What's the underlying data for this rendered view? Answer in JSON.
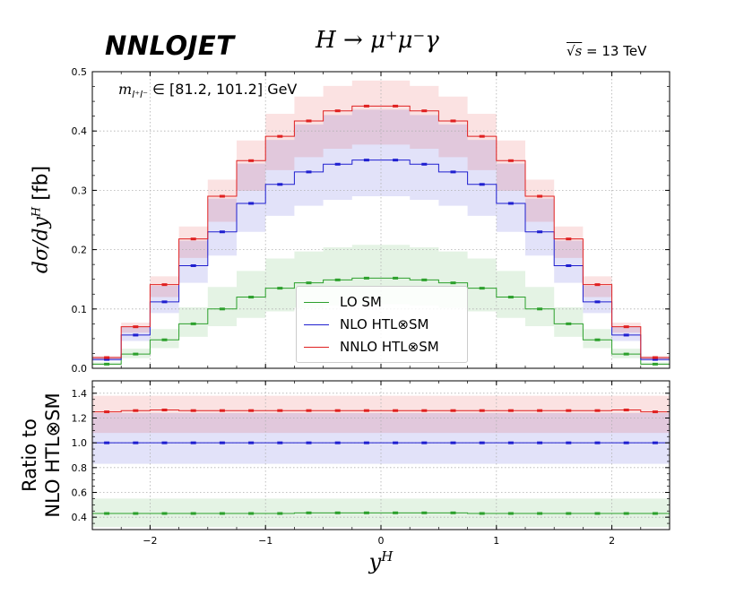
{
  "header": {
    "brand": "NNLOJET",
    "process": "H → μ⁺μ⁻γ",
    "energy_sqrt": "√s",
    "energy_value": " = 13 TeV",
    "mass_cut_var": "m",
    "mass_cut_sub": "l⁺l⁻",
    "mass_cut_range": " ∈ [81.2, 101.2] GeV"
  },
  "axes": {
    "top_ylabel_a": "dσ/dy",
    "top_ylabel_sup": "H",
    "top_ylabel_b": " [fb]",
    "bottom_ylabel_line1": "Ratio to",
    "bottom_ylabel_line2": "NLO HTL⊗SM",
    "xlabel": "y",
    "xlabel_sup": "H"
  },
  "legend": {
    "entries": [
      {
        "label": "LO SM",
        "color": "#2ca02c"
      },
      {
        "label": "NLO HTL⊗SM",
        "color": "#1f1fd0"
      },
      {
        "label": "NNLO HTL⊗SM",
        "color": "#e02020"
      }
    ]
  },
  "chart_data": [
    {
      "type": "line",
      "style": "step histogram with uncertainty bands",
      "x_bin_edges": [
        -2.5,
        -2.25,
        -2.0,
        -1.75,
        -1.5,
        -1.25,
        -1.0,
        -0.75,
        -0.5,
        -0.25,
        0.0,
        0.25,
        0.5,
        0.75,
        1.0,
        1.25,
        1.5,
        1.75,
        2.0,
        2.25,
        2.5
      ],
      "xlim": [
        -2.5,
        2.5
      ],
      "ylim": [
        0.0,
        0.5
      ],
      "x_ticks": [
        -2,
        -1,
        0,
        1,
        2
      ],
      "y_ticks": [
        0.0,
        0.1,
        0.2,
        0.3,
        0.4,
        0.5
      ],
      "grid": true,
      "legend_position": "bottom-center",
      "series": [
        {
          "name": "LO SM",
          "color": "#2ca02c",
          "values": [
            0.007,
            0.024,
            0.048,
            0.075,
            0.1,
            0.12,
            0.135,
            0.144,
            0.149,
            0.152,
            0.152,
            0.149,
            0.144,
            0.135,
            0.12,
            0.1,
            0.075,
            0.048,
            0.024,
            0.007
          ],
          "band_low": [
            0.005,
            0.017,
            0.034,
            0.053,
            0.071,
            0.085,
            0.096,
            0.102,
            0.106,
            0.108,
            0.108,
            0.106,
            0.102,
            0.096,
            0.085,
            0.071,
            0.053,
            0.034,
            0.017,
            0.005
          ],
          "band_high": [
            0.01,
            0.033,
            0.066,
            0.103,
            0.137,
            0.164,
            0.185,
            0.197,
            0.204,
            0.208,
            0.208,
            0.204,
            0.197,
            0.185,
            0.164,
            0.137,
            0.103,
            0.066,
            0.033,
            0.01
          ]
        },
        {
          "name": "NLO HTL⊗SM",
          "color": "#1f1fd0",
          "values": [
            0.015,
            0.056,
            0.112,
            0.173,
            0.23,
            0.278,
            0.31,
            0.331,
            0.344,
            0.351,
            0.351,
            0.344,
            0.331,
            0.31,
            0.278,
            0.23,
            0.173,
            0.112,
            0.056,
            0.015
          ],
          "band_low": [
            0.012,
            0.046,
            0.093,
            0.144,
            0.19,
            0.23,
            0.257,
            0.274,
            0.284,
            0.29,
            0.29,
            0.284,
            0.274,
            0.257,
            0.23,
            0.19,
            0.144,
            0.093,
            0.046,
            0.012
          ],
          "band_high": [
            0.019,
            0.07,
            0.139,
            0.215,
            0.286,
            0.345,
            0.385,
            0.411,
            0.427,
            0.436,
            0.436,
            0.427,
            0.411,
            0.385,
            0.345,
            0.286,
            0.215,
            0.139,
            0.07,
            0.019
          ]
        },
        {
          "name": "NNLO HTL⊗SM",
          "color": "#e02020",
          "values": [
            0.018,
            0.07,
            0.141,
            0.218,
            0.29,
            0.35,
            0.391,
            0.417,
            0.434,
            0.442,
            0.442,
            0.434,
            0.417,
            0.391,
            0.35,
            0.29,
            0.218,
            0.141,
            0.07,
            0.018
          ],
          "band_low": [
            0.015,
            0.06,
            0.12,
            0.186,
            0.247,
            0.299,
            0.334,
            0.356,
            0.37,
            0.377,
            0.377,
            0.37,
            0.356,
            0.334,
            0.299,
            0.247,
            0.186,
            0.12,
            0.06,
            0.015
          ],
          "band_high": [
            0.021,
            0.077,
            0.155,
            0.239,
            0.318,
            0.384,
            0.429,
            0.458,
            0.476,
            0.485,
            0.485,
            0.476,
            0.458,
            0.429,
            0.384,
            0.318,
            0.239,
            0.155,
            0.077,
            0.021
          ]
        }
      ]
    },
    {
      "type": "line",
      "style": "ratio panel with uncertainty bands",
      "x_bin_edges": [
        -2.5,
        -2.25,
        -2.0,
        -1.75,
        -1.5,
        -1.25,
        -1.0,
        -0.75,
        -0.5,
        -0.25,
        0.0,
        0.25,
        0.5,
        0.75,
        1.0,
        1.25,
        1.5,
        1.75,
        2.0,
        2.25,
        2.5
      ],
      "xlim": [
        -2.5,
        2.5
      ],
      "ylim": [
        0.3,
        1.5
      ],
      "x_ticks": [
        -2,
        -1,
        0,
        1,
        2
      ],
      "y_ticks": [
        0.4,
        0.6,
        0.8,
        1.0,
        1.2,
        1.4
      ],
      "grid": true,
      "series": [
        {
          "name": "LO SM",
          "color": "#2ca02c",
          "values": [
            0.43,
            0.43,
            0.43,
            0.43,
            0.43,
            0.43,
            0.43,
            0.435,
            0.435,
            0.435,
            0.435,
            0.435,
            0.435,
            0.43,
            0.43,
            0.43,
            0.43,
            0.43,
            0.43,
            0.43
          ],
          "band_low": [
            0.32,
            0.32,
            0.32,
            0.32,
            0.32,
            0.32,
            0.32,
            0.32,
            0.32,
            0.32,
            0.32,
            0.32,
            0.32,
            0.32,
            0.32,
            0.32,
            0.32,
            0.32,
            0.32,
            0.32
          ],
          "band_high": [
            0.55,
            0.55,
            0.55,
            0.55,
            0.55,
            0.55,
            0.55,
            0.55,
            0.55,
            0.55,
            0.55,
            0.55,
            0.55,
            0.55,
            0.55,
            0.55,
            0.55,
            0.55,
            0.55,
            0.55
          ]
        },
        {
          "name": "NLO HTL⊗SM",
          "color": "#1f1fd0",
          "values": [
            1.0,
            1.0,
            1.0,
            1.0,
            1.0,
            1.0,
            1.0,
            1.0,
            1.0,
            1.0,
            1.0,
            1.0,
            1.0,
            1.0,
            1.0,
            1.0,
            1.0,
            1.0,
            1.0,
            1.0
          ],
          "band_low": [
            0.83,
            0.83,
            0.83,
            0.83,
            0.83,
            0.83,
            0.83,
            0.83,
            0.83,
            0.83,
            0.83,
            0.83,
            0.83,
            0.83,
            0.83,
            0.83,
            0.83,
            0.83,
            0.83,
            0.83
          ],
          "band_high": [
            1.24,
            1.24,
            1.24,
            1.24,
            1.24,
            1.24,
            1.24,
            1.24,
            1.24,
            1.24,
            1.24,
            1.24,
            1.24,
            1.24,
            1.24,
            1.24,
            1.24,
            1.24,
            1.24,
            1.24
          ]
        },
        {
          "name": "NNLO HTL⊗SM",
          "color": "#e02020",
          "values": [
            1.25,
            1.26,
            1.265,
            1.26,
            1.26,
            1.26,
            1.26,
            1.26,
            1.26,
            1.26,
            1.26,
            1.26,
            1.26,
            1.26,
            1.26,
            1.26,
            1.26,
            1.26,
            1.265,
            1.25
          ],
          "band_low": [
            1.08,
            1.08,
            1.08,
            1.08,
            1.08,
            1.08,
            1.08,
            1.08,
            1.08,
            1.08,
            1.08,
            1.08,
            1.08,
            1.08,
            1.08,
            1.08,
            1.08,
            1.08,
            1.08,
            1.08
          ],
          "band_high": [
            1.38,
            1.38,
            1.38,
            1.38,
            1.38,
            1.38,
            1.38,
            1.38,
            1.38,
            1.38,
            1.38,
            1.38,
            1.38,
            1.38,
            1.38,
            1.38,
            1.38,
            1.38,
            1.38,
            1.38
          ]
        }
      ]
    }
  ]
}
